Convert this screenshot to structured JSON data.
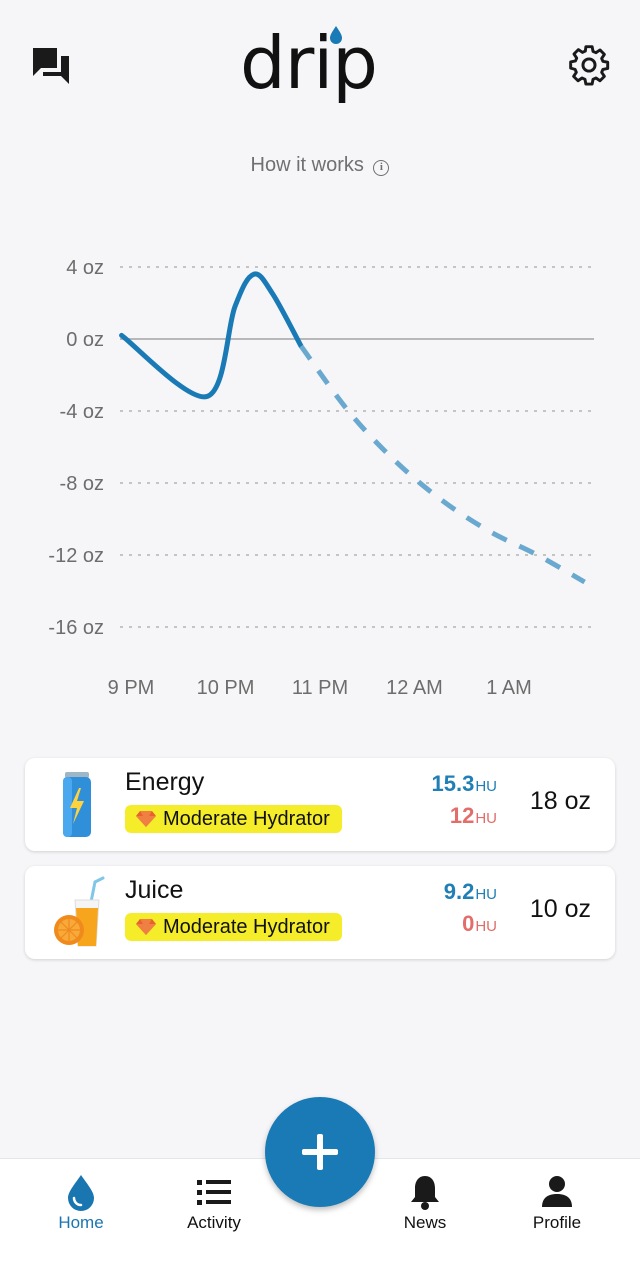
{
  "header": {
    "logo_text": "drip",
    "chat_icon": "chat-bubbles-icon",
    "settings_icon": "gear-icon"
  },
  "how_it_works": {
    "label": "How it works",
    "info_glyph": "i"
  },
  "chart_data": {
    "type": "line",
    "title": "",
    "xlabel": "",
    "ylabel": "",
    "y_ticks": [
      "4 oz",
      "0 oz",
      "-4 oz",
      "-8 oz",
      "-12 oz",
      "-16 oz"
    ],
    "y_tick_values": [
      4,
      0,
      -4,
      -8,
      -12,
      -16
    ],
    "x_ticks": [
      "9 PM",
      "10 PM",
      "11 PM",
      "12 AM",
      "1 AM"
    ],
    "ylim": [
      -16,
      4
    ],
    "x_unit": "hours after 9 PM",
    "grid": "dotted horizontal",
    "zero_line": true,
    "series": [
      {
        "style": "solid",
        "color": "#1a7ab5",
        "x": [
          -0.1,
          0.8,
          1.1,
          1.3,
          1.5,
          1.8
        ],
        "y": [
          0.2,
          -3.2,
          1.8,
          3.6,
          2.5,
          -0.4
        ]
      },
      {
        "style": "dashed",
        "color": "#6aa9cf",
        "x": [
          1.8,
          2.3,
          2.8,
          3.3,
          3.8,
          4.3,
          4.8
        ],
        "y": [
          -0.4,
          -4.0,
          -6.8,
          -9.0,
          -10.7,
          -12.0,
          -13.5
        ]
      }
    ]
  },
  "drinks": [
    {
      "name": "Energy",
      "icon": "energy-can-icon",
      "badge": "Moderate Hydrator",
      "badge_icon": "gem-icon",
      "hu_positive": "15.3",
      "hu_negative": "12",
      "hu_unit": "HU",
      "amount": "18 oz"
    },
    {
      "name": "Juice",
      "icon": "juice-glass-icon",
      "badge": "Moderate Hydrator",
      "badge_icon": "gem-icon",
      "hu_positive": "9.2",
      "hu_negative": "0",
      "hu_unit": "HU",
      "amount": "10 oz"
    }
  ],
  "fab": {
    "icon": "plus-icon"
  },
  "nav": {
    "items": [
      {
        "label": "Home",
        "icon": "drop-icon",
        "active": true
      },
      {
        "label": "Activity",
        "icon": "list-icon",
        "active": false
      },
      {
        "label": "News",
        "icon": "bell-icon",
        "active": false
      },
      {
        "label": "Profile",
        "icon": "person-icon",
        "active": false
      }
    ]
  },
  "colors": {
    "accent": "#1a7ab5",
    "hu_positive": "#1f7fb6",
    "hu_negative": "#e26d6a",
    "badge": "#f5ec2a",
    "background": "#f6f5f8"
  }
}
